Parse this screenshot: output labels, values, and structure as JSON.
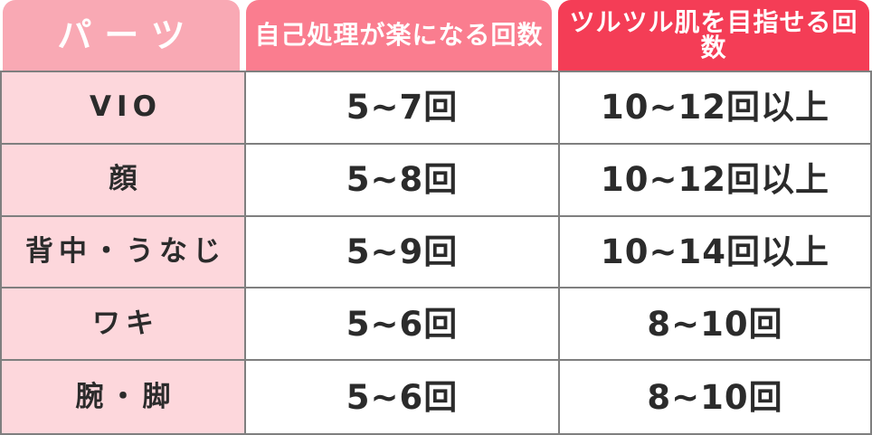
{
  "table": {
    "columns": {
      "parts": "パーツ",
      "easier": "自己処理が楽になる回数",
      "smooth": "ツルツル肌を目指せる回数"
    },
    "rows": [
      {
        "part": "VIO",
        "easier": "5~7回",
        "smooth": "10~12回以上"
      },
      {
        "part": "顔",
        "easier": "5~8回",
        "smooth": "10~12回以上"
      },
      {
        "part": "背中・うなじ",
        "easier": "5~9回",
        "smooth": "10~14回以上"
      },
      {
        "part": "ワキ",
        "easier": "5~6回",
        "smooth": "8~10回"
      },
      {
        "part": "腕・脚",
        "easier": "5~6回",
        "smooth": "8~10回"
      }
    ],
    "colors": {
      "header_parts_bg": "#f9a9b4",
      "header_easier_bg": "#fa7d8f",
      "header_smooth_bg": "#f43d56",
      "header_text": "#ffffff",
      "part_column_bg": "#fdd7dc",
      "value_cell_bg": "#ffffff",
      "body_text": "#2b2b2b",
      "grid_border": "#7f7f7f"
    }
  },
  "chart_data": {
    "type": "table",
    "columns": [
      "パーツ",
      "自己処理が楽になる回数",
      "ツルツル肌を目指せる回数"
    ],
    "rows": [
      [
        "VIO",
        "5~7回",
        "10~12回以上"
      ],
      [
        "顔",
        "5~8回",
        "10~12回以上"
      ],
      [
        "背中・うなじ",
        "5~9回",
        "10~14回以上"
      ],
      [
        "ワキ",
        "5~6回",
        "8~10回"
      ],
      [
        "腕・脚",
        "5~6回",
        "8~10回"
      ]
    ]
  }
}
